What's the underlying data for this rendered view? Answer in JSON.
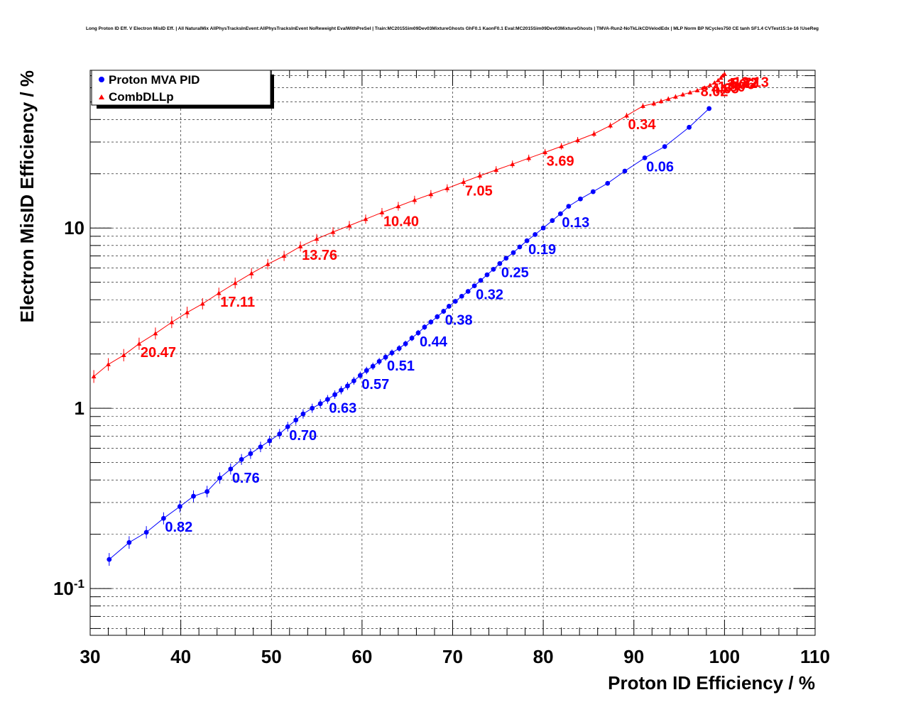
{
  "chart_data": {
    "type": "scatter",
    "title": "Long Proton ID Eff. V Electron MisID Eff. | All NaturalMix AllPhysTracksInEvent:AllPhysTracksInEvent NoReweight EvalWithPreSel | Train:MC2015Sim09Dev03MixtureGhosts GhF0.1 KaonF0.1 Eval:MC2015Sim09Dev03MixtureGhosts | TMVA-Run2-NoTkLikCDVelodEdx | MLP Norm BP NCycles750 CE tanh SF1.4 CVTest15:1e-16 !UseReg",
    "xlabel": "Proton ID Efficiency / %",
    "ylabel": "Electron MisID Efficiency / %",
    "xlim": [
      30,
      110
    ],
    "ylim": [
      0.055,
      75
    ],
    "yscale": "log",
    "grid": true,
    "legend_position": "top-left",
    "x_ticks": [
      "30",
      "40",
      "50",
      "60",
      "70",
      "80",
      "90",
      "100",
      "110"
    ],
    "y_ticks": [
      {
        "base": "10",
        "exp": "-1",
        "value": 0.1
      },
      {
        "base": "1",
        "exp": "",
        "value": 1
      },
      {
        "base": "10",
        "exp": "",
        "value": 10
      }
    ],
    "series": [
      {
        "name": "Proton MVA PID",
        "color": "#0000ff",
        "marker": "circle",
        "x": [
          32.1,
          34.3,
          36.2,
          38.1,
          39.9,
          41.4,
          42.9,
          44.3,
          45.5,
          46.7,
          47.7,
          48.8,
          49.8,
          50.9,
          51.8,
          52.7,
          53.5,
          54.5,
          55.4,
          56.2,
          57.0,
          57.7,
          58.4,
          59.1,
          59.8,
          60.5,
          61.2,
          61.9,
          62.6,
          63.3,
          64.1,
          64.8,
          65.5,
          66.2,
          66.9,
          67.6,
          68.3,
          69.0,
          69.6,
          70.3,
          71.0,
          71.7,
          72.4,
          73.1,
          73.8,
          74.5,
          75.2,
          75.9,
          76.7,
          77.4,
          78.2,
          79.1,
          80.0,
          81.0,
          81.9,
          82.8,
          84.1,
          85.5,
          87.1,
          89.0,
          91.2,
          93.4,
          96.1,
          98.3
        ],
        "y": [
          0.145,
          0.18,
          0.205,
          0.245,
          0.285,
          0.325,
          0.345,
          0.41,
          0.46,
          0.52,
          0.56,
          0.61,
          0.66,
          0.72,
          0.79,
          0.86,
          0.93,
          1.0,
          1.06,
          1.12,
          1.19,
          1.26,
          1.33,
          1.42,
          1.52,
          1.62,
          1.71,
          1.82,
          1.92,
          2.03,
          2.15,
          2.28,
          2.45,
          2.62,
          2.82,
          3.01,
          3.22,
          3.45,
          3.68,
          3.92,
          4.18,
          4.45,
          4.78,
          5.12,
          5.5,
          5.9,
          6.35,
          6.8,
          7.3,
          7.85,
          8.5,
          9.2,
          10.0,
          11.0,
          12.0,
          13.2,
          14.5,
          15.9,
          17.7,
          20.7,
          24.5,
          28.3,
          36.2,
          46.0
        ],
        "annotations": [
          {
            "x": 38.1,
            "y": 0.245,
            "text": "0.82"
          },
          {
            "x": 45.5,
            "y": 0.46,
            "text": "0.76"
          },
          {
            "x": 51.8,
            "y": 0.79,
            "text": "0.70"
          },
          {
            "x": 56.2,
            "y": 1.12,
            "text": "0.63"
          },
          {
            "x": 59.8,
            "y": 1.52,
            "text": "0.57"
          },
          {
            "x": 62.6,
            "y": 1.92,
            "text": "0.51"
          },
          {
            "x": 66.2,
            "y": 2.62,
            "text": "0.44"
          },
          {
            "x": 69.0,
            "y": 3.45,
            "text": "0.38"
          },
          {
            "x": 72.4,
            "y": 4.78,
            "text": "0.32"
          },
          {
            "x": 75.2,
            "y": 6.35,
            "text": "0.25"
          },
          {
            "x": 78.2,
            "y": 8.5,
            "text": "0.19"
          },
          {
            "x": 81.9,
            "y": 12.0,
            "text": "0.13"
          },
          {
            "x": 91.2,
            "y": 24.5,
            "text": "0.06"
          }
        ]
      },
      {
        "name": "CombDLLp",
        "color": "#ff0000",
        "marker": "triangle",
        "x": [
          30.4,
          32.0,
          33.7,
          35.4,
          37.2,
          39.0,
          40.7,
          42.4,
          44.2,
          46.0,
          47.8,
          49.6,
          51.4,
          53.2,
          55.0,
          56.8,
          58.6,
          60.4,
          62.2,
          64.0,
          65.8,
          67.6,
          69.4,
          71.2,
          73.0,
          74.8,
          76.6,
          78.4,
          80.2,
          82.0,
          83.8,
          85.6,
          87.4,
          89.2,
          91.0,
          92.2,
          93.0,
          93.8,
          94.6,
          95.4,
          96.2,
          97.0,
          97.8,
          98.4,
          98.9,
          99.3,
          99.6,
          99.8,
          100.0
        ],
        "y": [
          1.5,
          1.75,
          1.97,
          2.28,
          2.6,
          3.0,
          3.4,
          3.8,
          4.35,
          4.95,
          5.6,
          6.3,
          7.0,
          7.9,
          8.7,
          9.5,
          10.3,
          11.2,
          12.2,
          13.2,
          14.3,
          15.4,
          16.6,
          18.0,
          19.5,
          21.0,
          22.6,
          24.4,
          26.3,
          28.4,
          30.7,
          33.3,
          37.0,
          42.0,
          47.5,
          49.0,
          50.5,
          52.0,
          53.5,
          55.0,
          56.5,
          58.0,
          60.0,
          62.0,
          64.0,
          66.0,
          68.0,
          70.0,
          71.5
        ],
        "annotations": [
          {
            "x": 35.4,
            "y": 2.28,
            "text": "20.47"
          },
          {
            "x": 44.2,
            "y": 4.35,
            "text": "17.11"
          },
          {
            "x": 53.2,
            "y": 7.9,
            "text": "13.76"
          },
          {
            "x": 62.2,
            "y": 12.2,
            "text": "10.40"
          },
          {
            "x": 71.2,
            "y": 18.0,
            "text": "7.05"
          },
          {
            "x": 80.2,
            "y": 26.3,
            "text": "3.69"
          },
          {
            "x": 89.2,
            "y": 42.0,
            "text": "0.34"
          },
          {
            "x": 97.2,
            "y": 64.0,
            "text": "8.02"
          },
          {
            "x": 98.4,
            "y": 66.5,
            "text": "4.65"
          },
          {
            "x": 99.1,
            "y": 68.0,
            "text": "1.30"
          },
          {
            "x": 99.6,
            "y": 70.0,
            "text": "-2.06"
          },
          {
            "x": 99.9,
            "y": 71.0,
            "text": "-5.42"
          },
          {
            "x": 100.1,
            "y": 71.5,
            "text": "-8.77"
          },
          {
            "x": 100.3,
            "y": 72.0,
            "text": "-12.13"
          }
        ]
      }
    ]
  }
}
